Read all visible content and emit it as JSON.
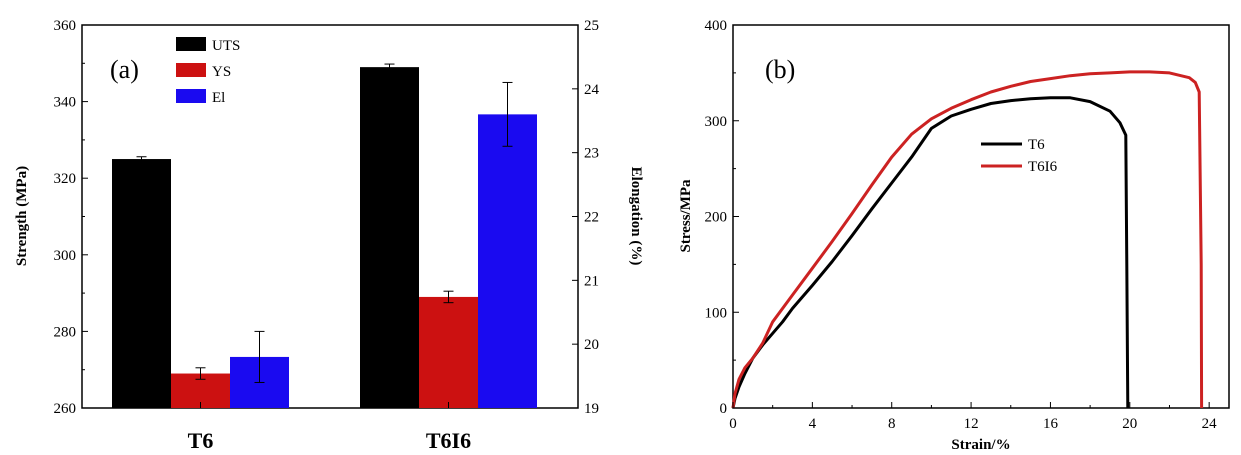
{
  "chart_data": [
    {
      "panel": "(a)",
      "type": "bar",
      "categories": [
        "T6",
        "T6I6"
      ],
      "series": [
        {
          "name": "UTS",
          "axis": "left",
          "color": "#000000",
          "values": [
            325,
            349
          ],
          "errors": [
            0.6,
            0.8
          ]
        },
        {
          "name": "YS",
          "axis": "left",
          "color": "#cc1111",
          "values": [
            269,
            289
          ],
          "errors": [
            1.5,
            1.5
          ]
        },
        {
          "name": "El",
          "axis": "right",
          "color": "#1a0af0",
          "values": [
            19.8,
            23.6
          ],
          "errors": [
            0.4,
            0.5
          ]
        }
      ],
      "ylabel": "Strength (MPa)",
      "ylim": [
        260,
        360
      ],
      "yticks": [
        "260",
        "280",
        "300",
        "320",
        "340",
        "360"
      ],
      "y2label": "Elongation (%)",
      "y2lim": [
        19,
        25
      ],
      "y2ticks": [
        "19",
        "20",
        "21",
        "22",
        "23",
        "24",
        "25"
      ],
      "legend_position": "top-center"
    },
    {
      "panel": "(b)",
      "type": "line",
      "xlabel": "Strain/%",
      "ylabel": "Stress/MPa",
      "xlim": [
        0,
        25
      ],
      "ylim": [
        0,
        400
      ],
      "xticks": [
        "0",
        "4",
        "8",
        "12",
        "16",
        "20",
        "24"
      ],
      "yticks": [
        "0",
        "100",
        "200",
        "300",
        "400"
      ],
      "legend_position": "center",
      "series": [
        {
          "name": "T6",
          "color": "#000000",
          "x": [
            0,
            0.1,
            0.3,
            0.6,
            1,
            1.5,
            2,
            2.5,
            3,
            4,
            5,
            6,
            7,
            8,
            9,
            10,
            11,
            12,
            13,
            14,
            15,
            16,
            17,
            18,
            19,
            19.5,
            19.8,
            19.85,
            19.9
          ],
          "y": [
            0,
            10,
            22,
            36,
            52,
            66,
            78,
            90,
            104,
            128,
            153,
            180,
            208,
            235,
            262,
            292,
            305,
            312,
            318,
            321,
            323,
            324,
            324,
            320,
            310,
            298,
            285,
            150,
            0
          ]
        },
        {
          "name": "T6I6",
          "color": "#cc2222",
          "x": [
            0,
            0.1,
            0.3,
            0.6,
            1,
            1.5,
            2,
            3,
            4,
            5,
            6,
            7,
            8,
            9,
            10,
            11,
            12,
            13,
            14,
            15,
            16,
            17,
            18,
            19,
            20,
            21,
            22,
            23,
            23.3,
            23.5,
            23.6,
            23.62
          ],
          "y": [
            0,
            15,
            30,
            42,
            52,
            68,
            90,
            118,
            146,
            174,
            203,
            233,
            262,
            286,
            302,
            313,
            322,
            330,
            336,
            341,
            344,
            347,
            349,
            350,
            351,
            351,
            350,
            345,
            340,
            330,
            150,
            0
          ]
        }
      ]
    }
  ]
}
